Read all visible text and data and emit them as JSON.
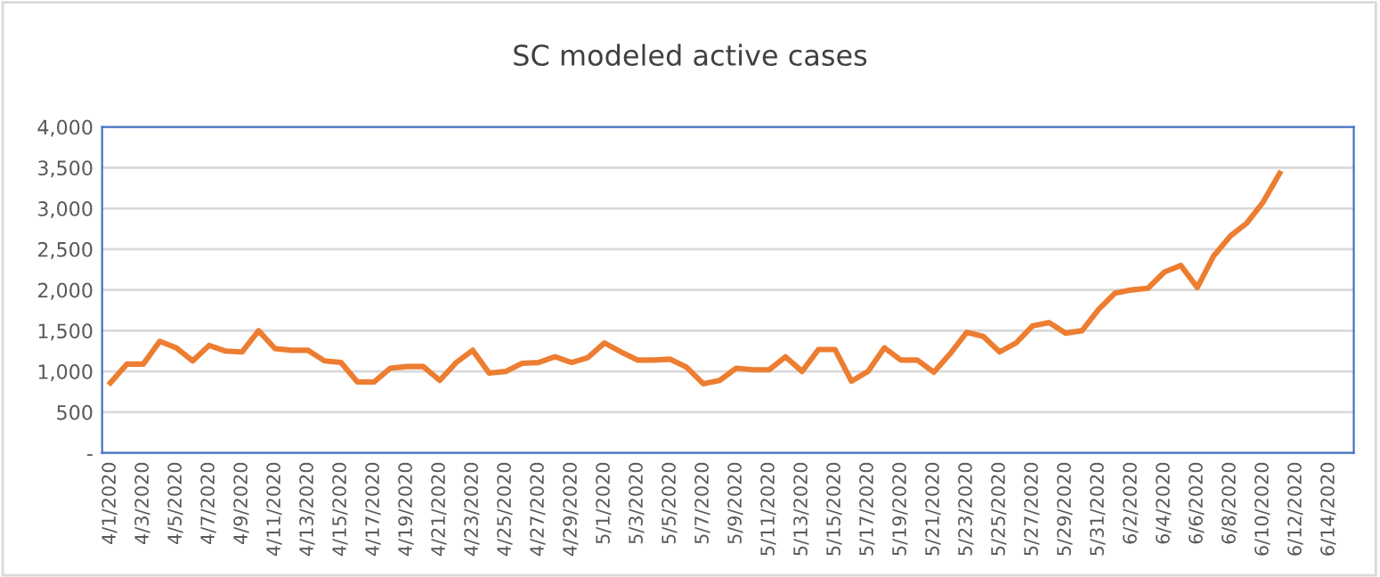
{
  "chart_data": {
    "type": "line",
    "title": "SC modeled active cases",
    "categories": [
      "4/1/2020",
      null,
      "4/3/2020",
      null,
      "4/5/2020",
      null,
      "4/7/2020",
      null,
      "4/9/2020",
      null,
      "4/11/2020",
      null,
      "4/13/2020",
      null,
      "4/15/2020",
      null,
      "4/17/2020",
      null,
      "4/19/2020",
      null,
      "4/21/2020",
      null,
      "4/23/2020",
      null,
      "4/25/2020",
      null,
      "4/27/2020",
      null,
      "4/29/2020",
      null,
      "5/1/2020",
      null,
      "5/3/2020",
      null,
      "5/5/2020",
      null,
      "5/7/2020",
      null,
      "5/9/2020",
      null,
      "5/11/2020",
      null,
      "5/13/2020",
      null,
      "5/15/2020",
      null,
      "5/17/2020",
      null,
      "5/19/2020",
      null,
      "5/21/2020",
      null,
      "5/23/2020",
      null,
      "5/25/2020",
      null,
      "5/27/2020",
      null,
      "5/29/2020",
      null,
      "5/31/2020",
      null,
      "6/2/2020",
      null,
      "6/4/2020",
      null,
      "6/6/2020",
      null,
      "6/8/2020",
      null,
      "6/10/2020",
      null,
      "6/12/2020",
      null,
      "6/14/2020",
      null
    ],
    "series": [
      {
        "color": "#ed7d31",
        "values": [
          860,
          1090,
          1090,
          1370,
          1290,
          1130,
          1320,
          1250,
          1240,
          1500,
          1280,
          1260,
          1260,
          1130,
          1110,
          870,
          870,
          1040,
          1060,
          1060,
          890,
          1110,
          1260,
          980,
          1000,
          1100,
          1110,
          1180,
          1110,
          1170,
          1350,
          1240,
          1140,
          1140,
          1150,
          1050,
          850,
          890,
          1040,
          1020,
          1020,
          1180,
          1000,
          1270,
          1270,
          880,
          1000,
          1290,
          1140,
          1140,
          990,
          1220,
          1480,
          1430,
          1240,
          1350,
          1560,
          1600,
          1470,
          1500,
          1760,
          1960,
          2000,
          2020,
          2220,
          2300,
          2030,
          2420,
          2660,
          2820,
          3080,
          3430,
          null,
          null,
          null,
          null
        ]
      }
    ],
    "ylim": [
      0,
      4000
    ],
    "yticks": [
      {
        "value": 0,
        "label": "-"
      },
      {
        "value": 500,
        "label": "500"
      },
      {
        "value": 1000,
        "label": "1,000"
      },
      {
        "value": 1500,
        "label": "1,500"
      },
      {
        "value": 2000,
        "label": "2,000"
      },
      {
        "value": 2500,
        "label": "2,500"
      },
      {
        "value": 3000,
        "label": "3,000"
      },
      {
        "value": 3500,
        "label": "3,500"
      },
      {
        "value": 4000,
        "label": "4,000"
      }
    ],
    "grid": "y",
    "legend": false,
    "marker": "none",
    "line_style": "solid"
  }
}
